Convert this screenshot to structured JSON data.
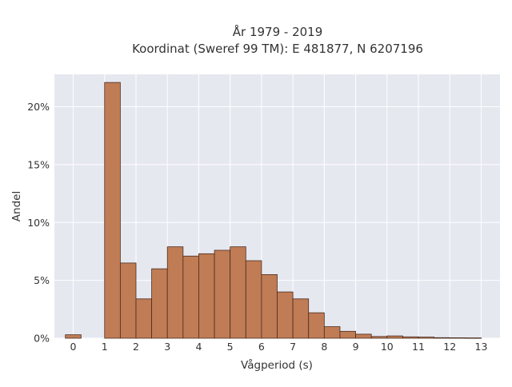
{
  "chart_data": {
    "type": "bar",
    "title": "År 1979 - 2019",
    "subtitle": "Koordinat (Sweref 99 TM): E 481877, N 6207196",
    "xlabel": "Vågperiod (s)",
    "ylabel": "Andel",
    "xlim": [
      -0.6,
      13.6
    ],
    "ylim": [
      0,
      22.8
    ],
    "x_ticks": [
      0,
      1,
      2,
      3,
      4,
      5,
      6,
      7,
      8,
      9,
      10,
      11,
      12,
      13
    ],
    "y_ticks": [
      0,
      5,
      10,
      15,
      20
    ],
    "y_tick_format": "percent",
    "bin_width": 0.5,
    "bins": [
      {
        "start": -0.25,
        "value": 0.3
      },
      {
        "start": 0.25,
        "value": 0.0
      },
      {
        "start": 0.75,
        "value": 0.0
      },
      {
        "start": 1.0,
        "value": 22.1
      },
      {
        "start": 1.5,
        "value": 6.5
      },
      {
        "start": 2.0,
        "value": 3.4
      },
      {
        "start": 2.5,
        "value": 6.0
      },
      {
        "start": 3.0,
        "value": 7.9
      },
      {
        "start": 3.5,
        "value": 7.1
      },
      {
        "start": 4.0,
        "value": 7.3
      },
      {
        "start": 4.5,
        "value": 7.6
      },
      {
        "start": 5.0,
        "value": 7.9
      },
      {
        "start": 5.5,
        "value": 6.7
      },
      {
        "start": 6.0,
        "value": 5.5
      },
      {
        "start": 6.5,
        "value": 4.0
      },
      {
        "start": 7.0,
        "value": 3.4
      },
      {
        "start": 7.5,
        "value": 2.2
      },
      {
        "start": 8.0,
        "value": 1.0
      },
      {
        "start": 8.5,
        "value": 0.6
      },
      {
        "start": 9.0,
        "value": 0.35
      },
      {
        "start": 9.5,
        "value": 0.15
      },
      {
        "start": 10.0,
        "value": 0.2
      },
      {
        "start": 10.5,
        "value": 0.12
      },
      {
        "start": 11.0,
        "value": 0.1
      },
      {
        "start": 11.5,
        "value": 0.05
      },
      {
        "start": 12.0,
        "value": 0.04
      },
      {
        "start": 12.5,
        "value": 0.03
      }
    ],
    "grid": true,
    "colors": {
      "bar_fill": "#c07c55",
      "bar_stroke": "#4a2c1e",
      "plot_background": "#e6e8f0",
      "grid": "#ffffff"
    }
  }
}
